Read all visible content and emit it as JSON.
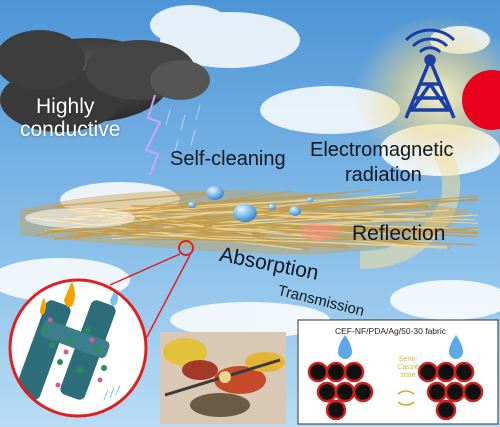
{
  "labels": {
    "highly": "Highly",
    "conductive": "conductive",
    "self_cleaning": "Self-cleaning",
    "em_line1": "Electromagnetic",
    "em_line2": "radiation",
    "reflection": "Reflection",
    "absorption": "Absorption",
    "transmission": "Transmission",
    "fabric_name": "CEF-NF/PDA/Ag/50-30 fabric",
    "semi_cassie": "Semi-Cassie state"
  },
  "icons": {
    "antenna": "radio-tower-icon",
    "signal": "wifi-signal-icon",
    "sun": "red-sun-icon",
    "cloud": "storm-cloud-icon",
    "lightning": "lightning-icon",
    "droplet": "water-droplet-icon",
    "swap": "swap-arrows-icon"
  },
  "colors": {
    "sky_top": "#4d95d6",
    "sky_bottom": "#b9dcf3",
    "fiber": "#d9b45a",
    "tower": "#1a3fa6",
    "sun": "#e8001c",
    "magnifier": "#e02020",
    "droplet": "#5da9e8"
  }
}
